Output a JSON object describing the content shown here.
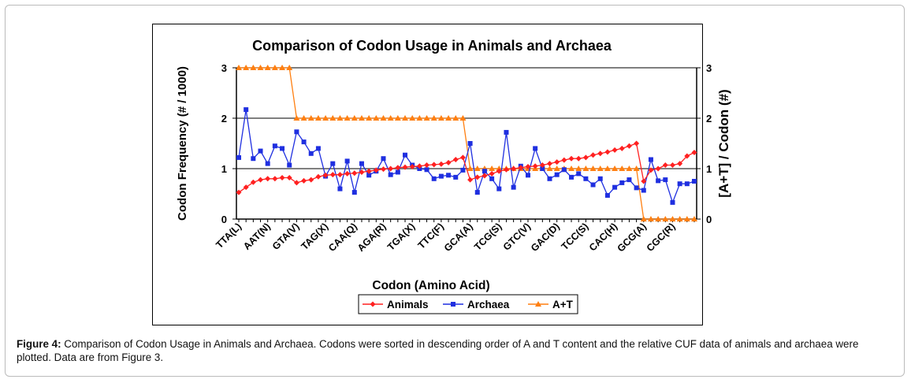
{
  "chart_data": {
    "type": "line",
    "title": "Comparison of Codon Usage  in Animals and Archaea",
    "xlabel": "Codon (Amino Acid)",
    "ylabel": "Codon Frequency (# / 1000)",
    "y2label": "[A+T] / Codon (#)",
    "ylim": [
      0,
      3
    ],
    "y2lim": [
      0,
      3
    ],
    "yticks": [
      "0",
      "1",
      "2",
      "3"
    ],
    "y2ticks": [
      "0",
      "1",
      "2",
      "3"
    ],
    "grid": true,
    "legend_position": "bottom",
    "tick_labels": [
      "TTA(L)",
      "AAT(N)",
      "GTA(V)",
      "TAG(X)",
      "CAA(Q)",
      "AGA(R)",
      "TGA(X)",
      "TTC(F)",
      "GCA(A)",
      "TCG(S)",
      "GTC(V)",
      "GAC(D)",
      "TCC(S)",
      "CAC(H)",
      "GCG(A)",
      "CGC(R)"
    ],
    "tick_every": 4,
    "n_points": 64,
    "series": [
      {
        "name": "Animals",
        "color": "#ff2020",
        "marker": "diamond",
        "axis": "left",
        "values": [
          0.53,
          0.63,
          0.73,
          0.78,
          0.8,
          0.8,
          0.82,
          0.82,
          0.72,
          0.76,
          0.78,
          0.84,
          0.87,
          0.88,
          0.88,
          0.9,
          0.91,
          0.93,
          0.95,
          0.97,
          0.99,
          1.0,
          1.02,
          1.03,
          1.04,
          1.05,
          1.07,
          1.08,
          1.09,
          1.12,
          1.18,
          1.22,
          0.78,
          0.83,
          0.86,
          0.9,
          0.95,
          0.98,
          1.0,
          1.02,
          1.04,
          1.05,
          1.07,
          1.1,
          1.13,
          1.17,
          1.2,
          1.2,
          1.22,
          1.27,
          1.3,
          1.33,
          1.37,
          1.4,
          1.45,
          1.5,
          0.75,
          0.97,
          1.0,
          1.07,
          1.07,
          1.1,
          1.25,
          1.32
        ]
      },
      {
        "name": "Archaea",
        "color": "#1f2fe0",
        "marker": "square",
        "axis": "left",
        "values": [
          1.22,
          2.17,
          1.2,
          1.35,
          1.1,
          1.45,
          1.4,
          1.07,
          1.73,
          1.53,
          1.3,
          1.4,
          0.85,
          1.1,
          0.6,
          1.15,
          0.53,
          1.1,
          0.87,
          0.95,
          1.2,
          0.88,
          0.93,
          1.27,
          1.07,
          1.0,
          0.98,
          0.8,
          0.85,
          0.87,
          0.83,
          0.97,
          1.5,
          0.53,
          0.95,
          0.8,
          0.6,
          1.72,
          0.63,
          1.05,
          0.87,
          1.4,
          1.0,
          0.8,
          0.88,
          0.98,
          0.83,
          0.9,
          0.8,
          0.68,
          0.8,
          0.47,
          0.63,
          0.72,
          0.78,
          0.62,
          0.57,
          1.18,
          0.76,
          0.78,
          0.33,
          0.7,
          0.7,
          0.75
        ]
      },
      {
        "name": "A+T",
        "color": "#ff7f10",
        "marker": "triangle",
        "axis": "right",
        "values": [
          3,
          3,
          3,
          3,
          3,
          3,
          3,
          3,
          2,
          2,
          2,
          2,
          2,
          2,
          2,
          2,
          2,
          2,
          2,
          2,
          2,
          2,
          2,
          2,
          2,
          2,
          2,
          2,
          2,
          2,
          2,
          2,
          1,
          1,
          1,
          1,
          1,
          1,
          1,
          1,
          1,
          1,
          1,
          1,
          1,
          1,
          1,
          1,
          1,
          1,
          1,
          1,
          1,
          1,
          1,
          1,
          0,
          0,
          0,
          0,
          0,
          0,
          0,
          0
        ]
      }
    ]
  },
  "caption": {
    "label": "Figure 4:",
    "text": " Comparison of Codon Usage in Animals and Archaea. Codons were sorted in descending order of A and T content and the relative CUF data of animals and archaea were plotted. Data are from Figure 3."
  }
}
